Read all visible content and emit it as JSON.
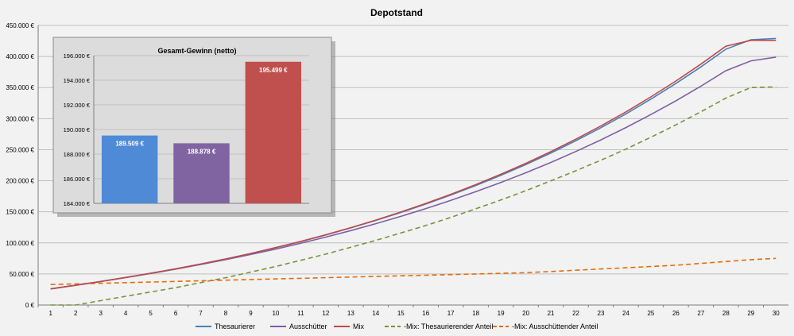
{
  "chart_data": [
    {
      "type": "line",
      "title": "Depotstand",
      "xlabel": "",
      "ylabel": "",
      "x": [
        1,
        2,
        3,
        4,
        5,
        6,
        7,
        8,
        9,
        10,
        11,
        12,
        13,
        14,
        15,
        16,
        17,
        18,
        19,
        20,
        21,
        22,
        23,
        24,
        25,
        26,
        27,
        28,
        29,
        30
      ],
      "ylim": [
        0,
        450000
      ],
      "yticks": [
        0,
        50000,
        100000,
        150000,
        200000,
        250000,
        300000,
        350000,
        400000,
        450000
      ],
      "ytick_labels": [
        "0 €",
        "50.000 €",
        "100.000 €",
        "150.000 €",
        "200.000 €",
        "250.000 €",
        "300.000 €",
        "350.000 €",
        "400.000 €",
        "450.000 €"
      ],
      "grid": true,
      "legend": "bottom",
      "series": [
        {
          "name": "Thesaurierer",
          "color": "#4a7ebb",
          "dash": "solid",
          "values": [
            26000,
            31800,
            37900,
            44300,
            51100,
            58300,
            66000,
            74200,
            83000,
            92300,
            102200,
            112800,
            124100,
            136100,
            148900,
            162500,
            177000,
            192400,
            208800,
            226200,
            244700,
            264400,
            285300,
            307600,
            331300,
            356500,
            383300,
            411800,
            427000,
            429000
          ]
        },
        {
          "name": "Ausschütter",
          "color": "#7d5fa6",
          "dash": "solid",
          "values": [
            26000,
            31800,
            37800,
            44100,
            50800,
            57800,
            65200,
            73000,
            81300,
            90000,
            99400,
            109300,
            119800,
            130900,
            142700,
            155200,
            168400,
            182400,
            197200,
            212900,
            229500,
            247100,
            265800,
            285600,
            306500,
            328700,
            352200,
            377100,
            393000,
            399000
          ]
        },
        {
          "name": "Mix",
          "color": "#be4b48",
          "dash": "solid",
          "values": [
            26000,
            31800,
            37900,
            44300,
            51100,
            58300,
            66000,
            74200,
            83000,
            92400,
            102400,
            113100,
            124500,
            136700,
            149700,
            163500,
            178200,
            193800,
            210400,
            228100,
            246900,
            266900,
            288200,
            310800,
            334900,
            360500,
            387700,
            416600,
            426000,
            426000
          ]
        },
        {
          "name": "-Mix: Thesaurierender Anteil",
          "color": "#77933c",
          "dash": "dashed",
          "values": [
            0,
            0,
            7000,
            14000,
            21000,
            28000,
            36000,
            44000,
            53000,
            62000,
            72000,
            82000,
            93000,
            104000,
            116000,
            128000,
            141000,
            155000,
            169000,
            184000,
            200000,
            216000,
            233000,
            251000,
            270000,
            290000,
            311000,
            333000,
            350000,
            351000
          ]
        },
        {
          "name": "-Mix: Ausschüttender Anteil",
          "color": "#e46c0a",
          "dash": "dashed",
          "values": [
            33000,
            34000,
            35000,
            36000,
            37000,
            38000,
            39000,
            40000,
            41000,
            42000,
            43000,
            44000,
            45000,
            46000,
            47000,
            48000,
            49000,
            50000,
            51000,
            52000,
            54000,
            56000,
            58000,
            60000,
            62000,
            64000,
            67000,
            70000,
            73000,
            75000
          ]
        }
      ]
    },
    {
      "type": "bar",
      "title": "Gesamt-Gewinn (netto)",
      "ylim": [
        184000,
        196000
      ],
      "yticks": [
        184000,
        186000,
        188000,
        190000,
        192000,
        194000,
        196000
      ],
      "ytick_labels": [
        "184.000 €",
        "186.000 €",
        "188.000 €",
        "190.000 €",
        "192.000 €",
        "194.000 €",
        "196.000 €"
      ],
      "categories": [
        "Thesaurierer",
        "Ausschütter",
        "Mix"
      ],
      "values": [
        189509,
        188878,
        195499
      ],
      "value_labels": [
        "189.509 €",
        "188.878 €",
        "195.499 €"
      ],
      "colors": [
        "#4f8ad6",
        "#8064a2",
        "#c0504d"
      ]
    }
  ]
}
